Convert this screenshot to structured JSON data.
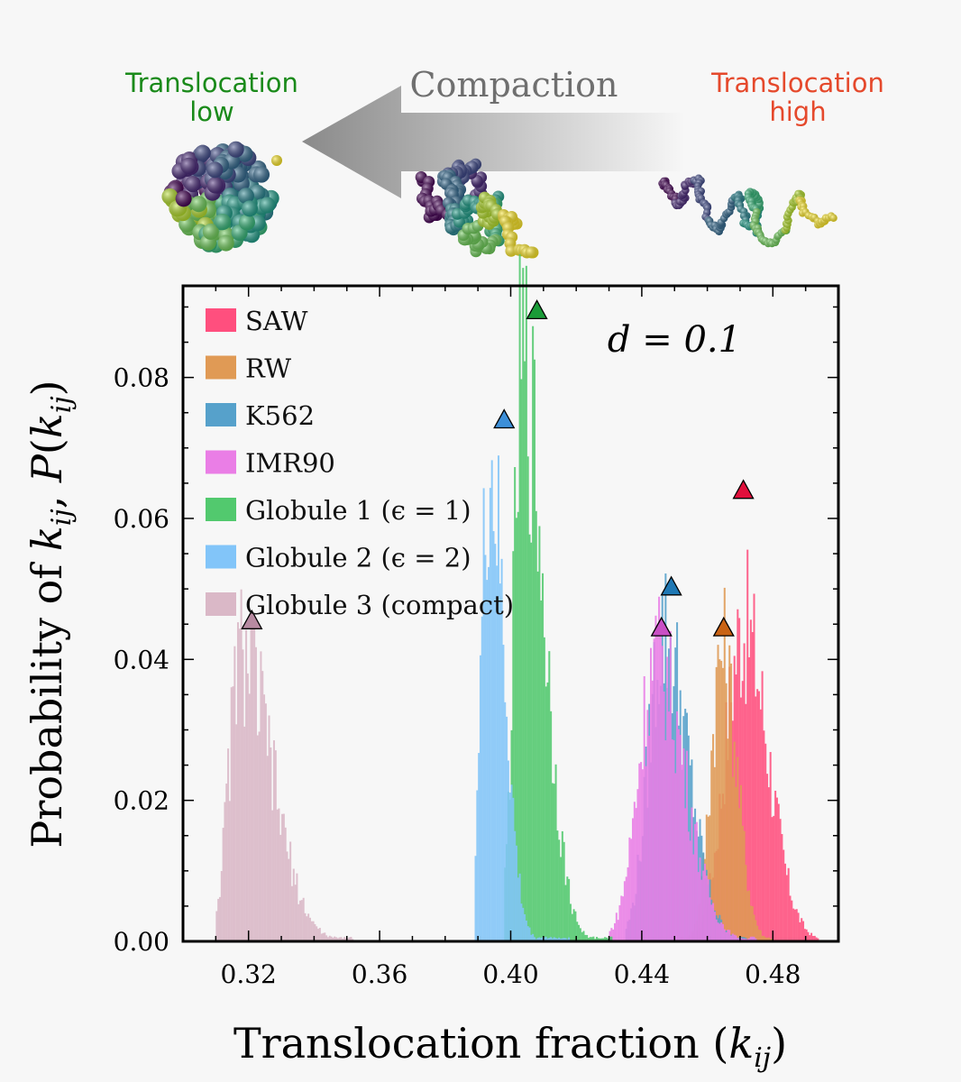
{
  "header": {
    "low_label_line1": "Translocation",
    "low_label_line2": "low",
    "high_label_line1": "Translocation",
    "high_label_line2": "high",
    "compaction_label": "Compaction"
  },
  "colors": {
    "low_label": "#1a8a1a",
    "high_label": "#e5492c",
    "compaction_label": "#6f6f6f"
  },
  "chart_data": {
    "type": "bar",
    "subtype": "histogram",
    "xlabel": "Translocation fraction (k_ij)",
    "ylabel": "Probability of k_ij, P(k_ij)",
    "annotation": "d = 0.1",
    "xlim": [
      0.3,
      0.5
    ],
    "ylim": [
      0.0,
      0.093
    ],
    "xticks": [
      "0.32",
      "0.36",
      "0.40",
      "0.44",
      "0.48"
    ],
    "xtick_values": [
      0.32,
      0.36,
      0.4,
      0.44,
      0.48
    ],
    "yticks": [
      "0.00",
      "0.02",
      "0.04",
      "0.06",
      "0.08"
    ],
    "ytick_values": [
      0.0,
      0.02,
      0.04,
      0.06,
      0.08
    ],
    "legend_position": "upper-left",
    "series": [
      {
        "name": "SAW",
        "color": "#ff4f7e",
        "marker_color": "#e0103c",
        "marker_x": 0.471,
        "marker_y": 0.064,
        "peak_x": 0.471,
        "peak_y": 0.047,
        "sigma_left": 0.0055,
        "sigma_right": 0.0075,
        "range": [
          0.455,
          0.494
        ]
      },
      {
        "name": "RW",
        "color": "#e09a55",
        "marker_color": "#c96315",
        "marker_x": 0.465,
        "marker_y": 0.0445,
        "peak_x": 0.4645,
        "peak_y": 0.043,
        "sigma_left": 0.0035,
        "sigma_right": 0.0045,
        "range": [
          0.452,
          0.48
        ]
      },
      {
        "name": "K562",
        "color": "#56a1cb",
        "marker_color": "#1f78b4",
        "marker_x": 0.449,
        "marker_y": 0.0503,
        "peak_x": 0.4465,
        "peak_y": 0.046,
        "sigma_left": 0.0045,
        "sigma_right": 0.0075,
        "range": [
          0.435,
          0.475
        ]
      },
      {
        "name": "IMR90",
        "color": "#ea7ee6",
        "marker_color": "#c94fc5",
        "marker_x": 0.446,
        "marker_y": 0.0445,
        "peak_x": 0.4445,
        "peak_y": 0.042,
        "sigma_left": 0.0055,
        "sigma_right": 0.0085,
        "range": [
          0.43,
          0.475
        ]
      },
      {
        "name": "Globule 1 (ϵ = 1)",
        "color": "#52c96e",
        "marker_color": "#1a9b38",
        "marker_x": 0.408,
        "marker_y": 0.0895,
        "peak_x": 0.4035,
        "peak_y": 0.085,
        "sigma_left": 0.0025,
        "sigma_right": 0.0065,
        "range": [
          0.398,
          0.431
        ]
      },
      {
        "name": "Globule 2 (ϵ = 2)",
        "color": "#82c5f9",
        "marker_color": "#3d8fd8",
        "marker_x": 0.398,
        "marker_y": 0.074,
        "peak_x": 0.3935,
        "peak_y": 0.07,
        "sigma_left": 0.0025,
        "sigma_right": 0.0045,
        "range": [
          0.389,
          0.418
        ]
      },
      {
        "name": "Globule 3 (compact)",
        "color": "#dab8c7",
        "marker_color": "#b78aa1",
        "marker_x": 0.321,
        "marker_y": 0.0455,
        "peak_x": 0.3175,
        "peak_y": 0.043,
        "sigma_left": 0.0035,
        "sigma_right": 0.0095,
        "range": [
          0.31,
          0.352
        ]
      }
    ]
  }
}
